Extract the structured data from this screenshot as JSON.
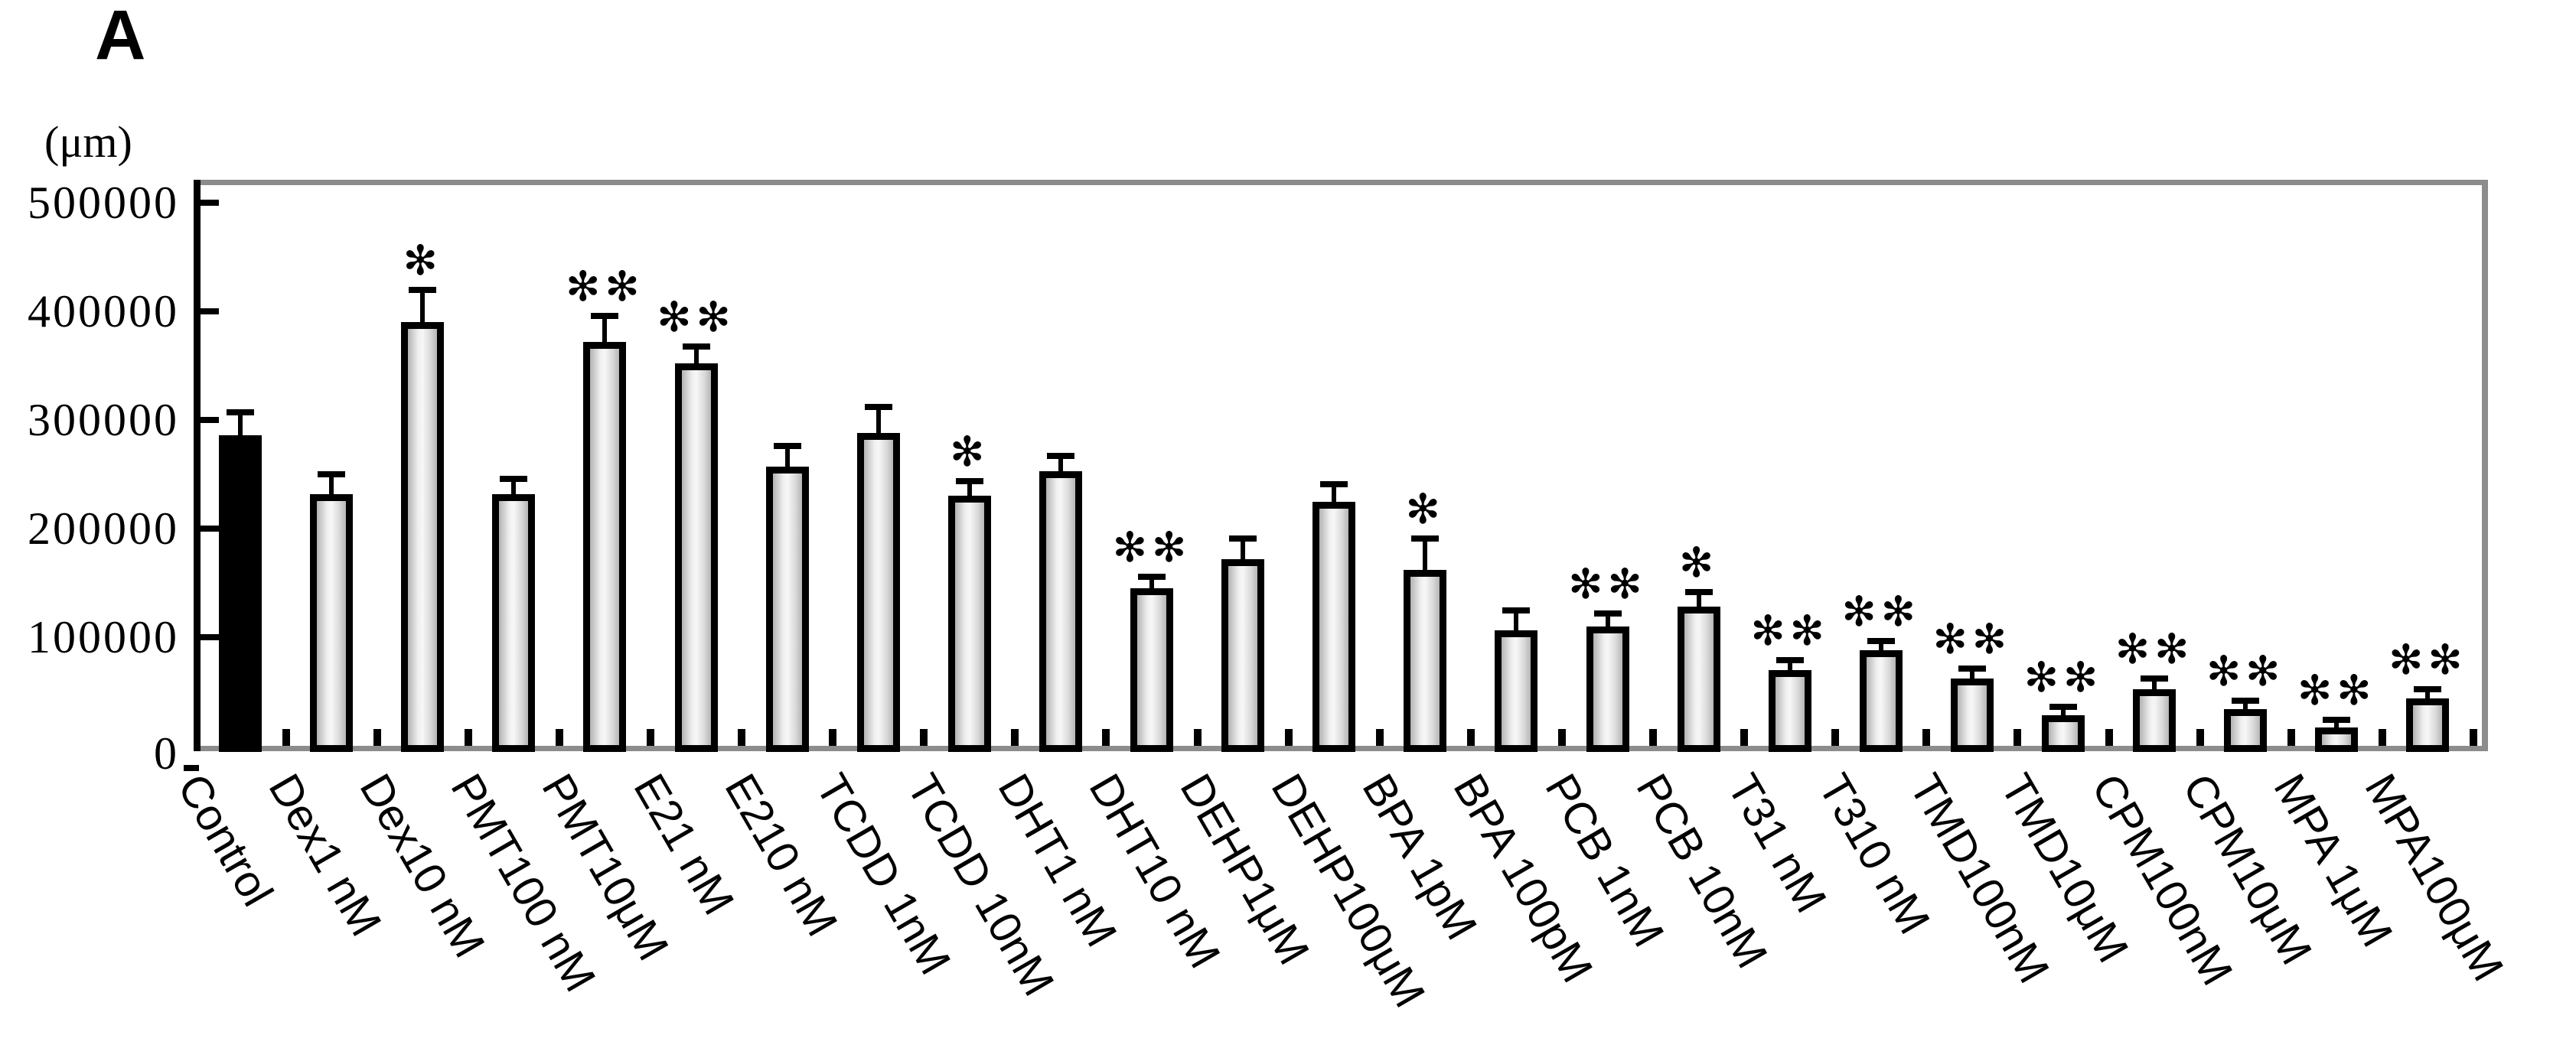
{
  "panel_label": "A",
  "y_axis": {
    "unit_label": "(μm)",
    "tick_values": [
      0,
      100000,
      200000,
      300000,
      400000,
      500000
    ],
    "tick_labels": [
      "0",
      "100000",
      "200000",
      "300000",
      "400000",
      "500000"
    ]
  },
  "colors": {
    "background": "#ffffff",
    "text": "#000000",
    "bar_border": "#000000",
    "control_bar_fill": "#000000",
    "bar_fill_gradient": [
      "#b3b3b3",
      "#efefef",
      "#f7f7f7",
      "#d9d9d9",
      "#b5b5b5"
    ],
    "frame_gray": "#8c8c8c",
    "error_bar": "#000000"
  },
  "significance_symbols": {
    "p05": "*",
    "p01": "**"
  },
  "chart_data": {
    "type": "bar",
    "title": "",
    "xlabel": "",
    "ylabel": "(μm)",
    "ylim": [
      0,
      500000
    ],
    "y_tick_interval": 100000,
    "grid": false,
    "legend": false,
    "error_bars": "upward whisker with cap",
    "control_bar_style": "solid black",
    "treatment_bar_style": "light gray gradient fill, thick black outline",
    "categories": [
      "Control",
      "Dex1 nM",
      "Dex10 nM",
      "PMT100 nM",
      "PMT10μM",
      "E21 nM",
      "E210 nM",
      "TCDD 1nM",
      "TCDD 10nM",
      "DHT1 nM",
      "DHT10 nM",
      "DEHP1μM",
      "DEHP100μM",
      "BPA 1pM",
      "BPA 100pM",
      "PCB 1nM",
      "PCB 10nM",
      "T31 nM",
      "T310 nM",
      "TMD100nM",
      "TMD10μM",
      "CPM100nM",
      "CPM10μM",
      "MPA 1μM",
      "MPA100μM"
    ],
    "values": [
      286000,
      232000,
      390000,
      232000,
      372000,
      352000,
      257000,
      288000,
      230000,
      253000,
      145000,
      172000,
      225000,
      162000,
      106000,
      110000,
      128000,
      70000,
      88000,
      62000,
      28000,
      52000,
      34000,
      17000,
      44000
    ],
    "errors": [
      18000,
      15000,
      27000,
      11000,
      21000,
      13000,
      16000,
      21000,
      11000,
      11000,
      8000,
      16000,
      13000,
      26000,
      16000,
      9000,
      11000,
      6000,
      6000,
      6000,
      5000,
      7000,
      5000,
      4000,
      5000
    ],
    "significance": [
      "",
      "",
      "*",
      "",
      "**",
      "**",
      "",
      "",
      "*",
      "",
      "**",
      "",
      "",
      "*",
      "",
      "**",
      "*",
      "**",
      "**",
      "**",
      "**",
      "**",
      "**",
      "**",
      "**"
    ]
  }
}
